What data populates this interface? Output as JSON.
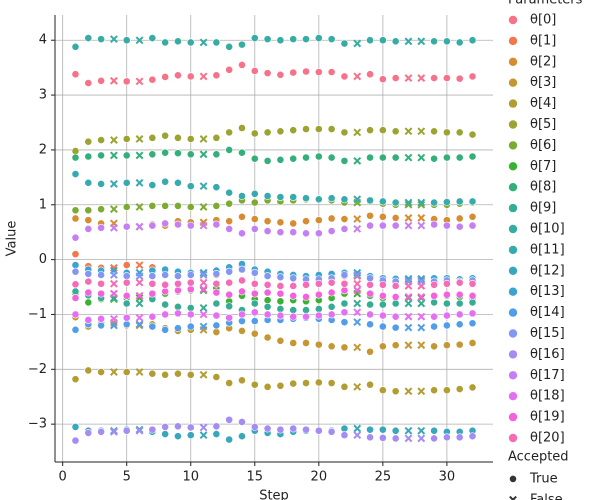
{
  "chart_data": {
    "type": "scatter",
    "xlabel": "Step",
    "ylabel": "Value",
    "xlim": [
      -0.6,
      33.6
    ],
    "ylim": [
      -3.69,
      4.46
    ],
    "xticks": [
      0,
      5,
      10,
      15,
      20,
      25,
      30
    ],
    "yticks": [
      {
        "value": -3,
        "label": "−3"
      },
      {
        "value": -2,
        "label": "−2"
      },
      {
        "value": -1,
        "label": "−1"
      },
      0,
      1,
      2,
      3,
      4
    ],
    "grid": true,
    "legend_title": "Parameters",
    "marker_legend": {
      "title": "Accepted",
      "labels": [
        "True",
        "False"
      ]
    },
    "x": [
      1,
      2,
      3,
      4,
      5,
      6,
      7,
      8,
      9,
      10,
      11,
      12,
      13,
      14,
      15,
      16,
      17,
      18,
      19,
      20,
      21,
      22,
      23,
      24,
      25,
      26,
      27,
      28,
      29,
      30,
      31,
      32
    ],
    "accepted": [
      true,
      true,
      true,
      false,
      true,
      false,
      true,
      true,
      true,
      true,
      false,
      true,
      true,
      true,
      true,
      true,
      true,
      true,
      true,
      true,
      true,
      true,
      false,
      true,
      true,
      true,
      false,
      false,
      true,
      true,
      true,
      true
    ],
    "series": [
      {
        "name": "θ[0]",
        "color": "#f77189",
        "values": [
          3.38,
          3.22,
          3.26,
          3.26,
          3.25,
          3.25,
          3.28,
          3.33,
          3.36,
          3.34,
          3.34,
          3.36,
          3.46,
          3.55,
          3.44,
          3.4,
          3.37,
          3.41,
          3.43,
          3.42,
          3.42,
          3.34,
          3.34,
          3.38,
          3.29,
          3.31,
          3.31,
          3.31,
          3.31,
          3.31,
          3.3,
          3.34
        ]
      },
      {
        "name": "θ[1]",
        "color": "#f2774b",
        "values": [
          0.1,
          -0.12,
          -0.15,
          -0.15,
          -0.1,
          -0.1,
          -0.14,
          -0.2,
          -0.22,
          -0.25,
          -0.25,
          -0.28,
          -0.18,
          -0.12,
          -0.22,
          -0.27,
          -0.3,
          -0.33,
          -0.3,
          -0.28,
          -0.26,
          -0.3,
          -0.3,
          -0.32,
          -0.35,
          -0.38,
          -0.38,
          -0.38,
          -0.4,
          -0.37,
          -0.38,
          -0.35
        ]
      },
      {
        "name": "θ[2]",
        "color": "#d88c32",
        "values": [
          0.75,
          0.72,
          0.66,
          0.66,
          0.6,
          0.6,
          0.64,
          0.62,
          0.7,
          0.68,
          0.68,
          0.72,
          0.7,
          0.78,
          0.74,
          0.7,
          0.68,
          0.66,
          0.7,
          0.72,
          0.75,
          0.74,
          0.74,
          0.8,
          0.78,
          0.76,
          0.76,
          0.76,
          0.74,
          0.72,
          0.75,
          0.78
        ]
      },
      {
        "name": "θ[3]",
        "color": "#c49732",
        "values": [
          -1.05,
          -1.22,
          -1.15,
          -1.15,
          -1.2,
          -1.2,
          -1.18,
          -1.25,
          -1.3,
          -1.28,
          -1.28,
          -1.32,
          -1.25,
          -1.3,
          -1.35,
          -1.42,
          -1.48,
          -1.52,
          -1.52,
          -1.55,
          -1.58,
          -1.6,
          -1.6,
          -1.68,
          -1.58,
          -1.56,
          -1.56,
          -1.56,
          -1.58,
          -1.56,
          -1.55,
          -1.52
        ]
      },
      {
        "name": "θ[4]",
        "color": "#b19d31",
        "values": [
          -2.18,
          -2.02,
          -2.05,
          -2.05,
          -2.05,
          -2.05,
          -2.08,
          -2.1,
          -2.08,
          -2.1,
          -2.1,
          -2.14,
          -2.25,
          -2.2,
          -2.28,
          -2.32,
          -2.3,
          -2.26,
          -2.25,
          -2.24,
          -2.25,
          -2.32,
          -2.32,
          -2.28,
          -2.38,
          -2.4,
          -2.4,
          -2.4,
          -2.38,
          -2.38,
          -2.36,
          -2.33
        ]
      },
      {
        "name": "θ[5]",
        "color": "#9ca331",
        "values": [
          1.98,
          2.15,
          2.18,
          2.18,
          2.2,
          2.2,
          2.22,
          2.26,
          2.22,
          2.2,
          2.2,
          2.22,
          2.32,
          2.4,
          2.3,
          2.32,
          2.34,
          2.36,
          2.38,
          2.38,
          2.38,
          2.32,
          2.32,
          2.36,
          2.36,
          2.34,
          2.34,
          2.34,
          2.34,
          2.32,
          2.32,
          2.28
        ]
      },
      {
        "name": "θ[6]",
        "color": "#7daa31",
        "values": [
          0.9,
          0.9,
          0.92,
          0.92,
          0.96,
          0.96,
          0.98,
          0.98,
          0.98,
          0.96,
          0.96,
          0.98,
          1.02,
          1.08,
          1.04,
          1.08,
          1.06,
          1.08,
          1.1,
          1.1,
          1.08,
          1.04,
          1.04,
          1.06,
          1.02,
          1.0,
          1.0,
          1.0,
          1.0,
          1.0,
          1.02,
          1.04
        ]
      },
      {
        "name": "θ[7]",
        "color": "#39b131",
        "values": [
          -0.62,
          -0.78,
          -0.72,
          -0.72,
          -0.7,
          -0.7,
          -0.66,
          -0.62,
          -0.58,
          -0.56,
          -0.56,
          -0.52,
          -0.76,
          -0.66,
          -0.72,
          -0.74,
          -0.76,
          -0.74,
          -0.76,
          -0.74,
          -0.7,
          -0.62,
          -0.62,
          -0.66,
          -0.7,
          -0.7,
          -0.7,
          -0.7,
          -0.68,
          -0.66,
          -0.68,
          -0.7
        ]
      },
      {
        "name": "θ[8]",
        "color": "#33b07a",
        "values": [
          1.86,
          1.88,
          1.9,
          1.9,
          1.9,
          1.9,
          1.92,
          1.95,
          1.94,
          1.92,
          1.92,
          1.92,
          2.0,
          1.95,
          1.84,
          1.8,
          1.82,
          1.84,
          1.86,
          1.88,
          1.86,
          1.8,
          1.8,
          1.86,
          1.86,
          1.86,
          1.86,
          1.86,
          1.84,
          1.86,
          1.86,
          1.88
        ]
      },
      {
        "name": "θ[9]",
        "color": "#34ad94",
        "values": [
          -0.58,
          -0.65,
          -0.7,
          -0.7,
          -0.8,
          -0.8,
          -0.72,
          -0.82,
          -0.86,
          -0.88,
          -0.88,
          -0.8,
          -0.85,
          -0.92,
          -0.8,
          -0.86,
          -0.9,
          -0.92,
          -0.92,
          -0.9,
          -0.86,
          -0.8,
          -0.8,
          -0.82,
          -0.82,
          -0.8,
          -0.8,
          -0.8,
          -0.78,
          -0.8,
          -0.8,
          -0.78
        ]
      },
      {
        "name": "θ[10]",
        "color": "#35aca4",
        "values": [
          3.88,
          4.04,
          4.02,
          4.02,
          4.0,
          4.0,
          4.04,
          3.96,
          3.98,
          3.96,
          3.96,
          3.96,
          3.88,
          3.92,
          4.04,
          4.02,
          4.0,
          4.02,
          4.02,
          4.04,
          4.02,
          3.94,
          3.94,
          4.0,
          4.0,
          3.98,
          3.98,
          3.98,
          3.98,
          3.98,
          3.96,
          4.0
        ]
      },
      {
        "name": "θ[11]",
        "color": "#36aaaf",
        "values": [
          1.56,
          1.4,
          1.38,
          1.38,
          1.4,
          1.4,
          1.36,
          1.42,
          1.4,
          1.34,
          1.34,
          1.32,
          1.22,
          1.16,
          1.2,
          1.16,
          1.14,
          1.14,
          1.12,
          1.1,
          1.12,
          1.1,
          1.1,
          1.08,
          1.06,
          1.04,
          1.04,
          1.04,
          1.04,
          1.05,
          1.06,
          1.06
        ]
      },
      {
        "name": "θ[12]",
        "color": "#38a7bc",
        "values": [
          -3.05,
          -3.12,
          -3.12,
          -3.12,
          -3.1,
          -3.1,
          -3.14,
          -3.18,
          -3.22,
          -3.2,
          -3.2,
          -3.18,
          -3.28,
          -3.22,
          -3.12,
          -3.16,
          -3.18,
          -3.14,
          -3.12,
          -3.12,
          -3.12,
          -3.08,
          -3.08,
          -3.1,
          -3.1,
          -3.12,
          -3.12,
          -3.12,
          -3.12,
          -3.14,
          -3.14,
          -3.12
        ]
      },
      {
        "name": "θ[13]",
        "color": "#3ba3d0",
        "values": [
          -0.1,
          -0.18,
          -0.2,
          -0.2,
          -0.24,
          -0.24,
          -0.2,
          -0.18,
          -0.22,
          -0.24,
          -0.24,
          -0.2,
          -0.14,
          -0.08,
          -0.18,
          -0.22,
          -0.26,
          -0.28,
          -0.3,
          -0.28,
          -0.26,
          -0.24,
          -0.24,
          -0.3,
          -0.34,
          -0.35,
          -0.35,
          -0.35,
          -0.34,
          -0.34,
          -0.36,
          -0.34
        ]
      },
      {
        "name": "θ[14]",
        "color": "#519de9",
        "values": [
          -1.28,
          -1.18,
          -1.2,
          -1.2,
          -1.18,
          -1.18,
          -1.22,
          -1.28,
          -1.25,
          -1.22,
          -1.22,
          -1.2,
          -1.15,
          -1.12,
          -1.12,
          -1.1,
          -1.1,
          -1.08,
          -1.06,
          -1.08,
          -1.1,
          -1.14,
          -1.14,
          -1.18,
          -1.22,
          -1.24,
          -1.24,
          -1.24,
          -1.22,
          -1.2,
          -1.18,
          -1.16
        ]
      },
      {
        "name": "θ[15]",
        "color": "#8197f4",
        "values": [
          -0.22,
          -0.26,
          -0.28,
          -0.28,
          -0.3,
          -0.3,
          -0.3,
          -0.28,
          -0.3,
          -0.28,
          -0.28,
          -0.26,
          -0.22,
          -0.18,
          -0.24,
          -0.3,
          -0.32,
          -0.34,
          -0.36,
          -0.36,
          -0.34,
          -0.28,
          -0.28,
          -0.34,
          -0.38,
          -0.4,
          -0.4,
          -0.4,
          -0.4,
          -0.38,
          -0.4,
          -0.38
        ]
      },
      {
        "name": "θ[16]",
        "color": "#a48cf4",
        "values": [
          -3.3,
          -3.16,
          -3.14,
          -3.14,
          -3.12,
          -3.12,
          -3.1,
          -3.05,
          -3.04,
          -3.06,
          -3.06,
          -3.04,
          -2.92,
          -2.96,
          -3.05,
          -3.08,
          -3.1,
          -3.08,
          -3.1,
          -3.12,
          -3.14,
          -3.2,
          -3.2,
          -3.24,
          -3.25,
          -3.26,
          -3.26,
          -3.26,
          -3.26,
          -3.24,
          -3.24,
          -3.22
        ]
      },
      {
        "name": "θ[17]",
        "color": "#c67ef4",
        "values": [
          0.4,
          0.56,
          0.58,
          0.58,
          0.6,
          0.6,
          0.62,
          0.66,
          0.64,
          0.62,
          0.62,
          0.64,
          0.56,
          0.48,
          0.56,
          0.52,
          0.5,
          0.5,
          0.48,
          0.48,
          0.52,
          0.56,
          0.56,
          0.62,
          0.62,
          0.62,
          0.62,
          0.62,
          0.64,
          0.62,
          0.6,
          0.62
        ]
      },
      {
        "name": "θ[18]",
        "color": "#e56ff4",
        "values": [
          -1.0,
          -1.1,
          -1.08,
          -1.08,
          -1.06,
          -1.06,
          -1.04,
          -1.0,
          -0.98,
          -1.0,
          -1.0,
          -1.02,
          -1.06,
          -1.0,
          -0.96,
          -1.0,
          -1.02,
          -1.04,
          -1.04,
          -1.02,
          -1.0,
          -0.96,
          -0.96,
          -1.0,
          -1.02,
          -1.04,
          -1.04,
          -1.04,
          -1.04,
          -1.02,
          -1.0,
          -0.98
        ]
      },
      {
        "name": "θ[19]",
        "color": "#f561dd",
        "values": [
          -0.7,
          -0.6,
          -0.62,
          -0.62,
          -0.66,
          -0.66,
          -0.62,
          -0.58,
          -0.56,
          -0.54,
          -0.54,
          -0.6,
          -0.64,
          -0.58,
          -0.62,
          -0.6,
          -0.62,
          -0.66,
          -0.68,
          -0.64,
          -0.6,
          -0.56,
          -0.56,
          -0.62,
          -0.66,
          -0.68,
          -0.68,
          -0.68,
          -0.66,
          -0.64,
          -0.64,
          -0.66
        ]
      },
      {
        "name": "θ[20]",
        "color": "#f66bb6",
        "values": [
          -0.45,
          -0.4,
          -0.44,
          -0.44,
          -0.42,
          -0.42,
          -0.44,
          -0.46,
          -0.44,
          -0.42,
          -0.42,
          -0.44,
          -0.42,
          -0.38,
          -0.44,
          -0.46,
          -0.48,
          -0.48,
          -0.46,
          -0.44,
          -0.42,
          -0.44,
          -0.44,
          -0.46,
          -0.46,
          -0.48,
          -0.48,
          -0.48,
          -0.46,
          -0.44,
          -0.42,
          -0.44
        ]
      }
    ]
  }
}
